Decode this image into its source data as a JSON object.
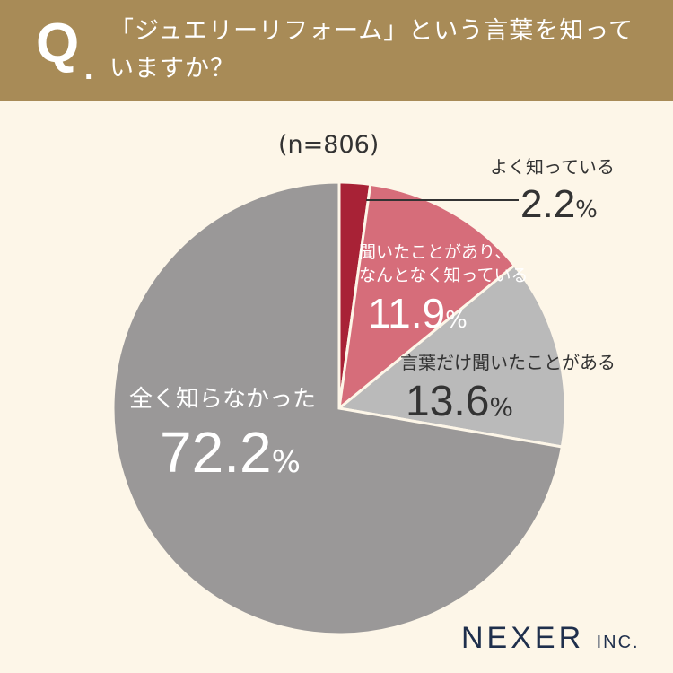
{
  "header": {
    "q_letter": "Q",
    "q_dot": ".",
    "question_line1": "「ジュエリーリフォーム」という言葉を知って",
    "question_line2": "いますか？"
  },
  "sample_size": "(n=806)",
  "percent_sign": "%",
  "colors": {
    "header_bg": "#a88b57",
    "background": "#fdf6e8",
    "slice_1": "#a82236",
    "slice_2": "#d66d7a",
    "slice_3": "#bababa",
    "slice_4": "#9a9898"
  },
  "chart_data": {
    "type": "pie",
    "series": [
      {
        "name": "よく知っている",
        "value": 2.2
      },
      {
        "name": "聞いたことがあり、なんとなく知っている",
        "value": 11.9
      },
      {
        "name": "言葉だけ聞いたことがある",
        "value": 13.6
      },
      {
        "name": "全く知らなかった",
        "value": 72.2
      }
    ],
    "labels": {
      "s1": "よく知っている",
      "s1_value": "2.2",
      "s2_line1": "聞いたことがあり、",
      "s2_line2": "なんとなく知っている",
      "s2_value": "11.9",
      "s3": "言葉だけ聞いたことがある",
      "s3_value": "13.6",
      "s4": "全く知らなかった",
      "s4_value": "72.2"
    }
  },
  "logo": {
    "main": "NEXER",
    "suffix": "INC."
  }
}
